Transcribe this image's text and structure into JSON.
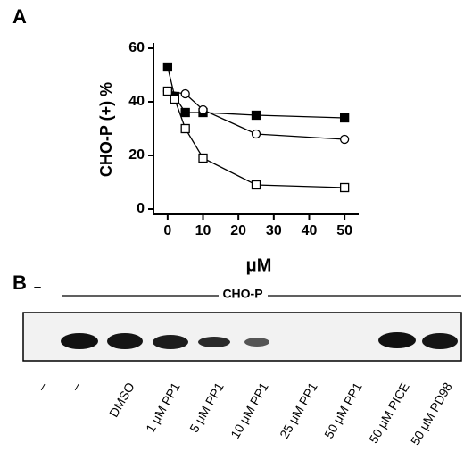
{
  "chart_data": {
    "type": "line",
    "panel_label": "A",
    "y_label": "CHO-P (+) %",
    "x_label": "μM",
    "xlim": [
      -4,
      54
    ],
    "xticks": [
      0,
      10,
      20,
      30,
      40,
      50
    ],
    "ylim": [
      -2,
      62
    ],
    "yticks": [
      0,
      20,
      40,
      60
    ],
    "series": [
      {
        "color": "#000000",
        "marker": "filled-square",
        "x": [
          0,
          2,
          5,
          10,
          25,
          50
        ],
        "values": [
          53,
          42,
          36,
          36,
          35,
          34
        ]
      },
      {
        "color": "#000000",
        "marker": "open-circle",
        "x": [
          0,
          5,
          10,
          25,
          50
        ],
        "values": [
          44,
          43,
          37,
          28,
          26
        ]
      },
      {
        "color": "#000000",
        "marker": "open-square",
        "x": [
          0,
          2,
          5,
          10,
          25,
          50
        ],
        "values": [
          44,
          41,
          30,
          19,
          9,
          8
        ]
      }
    ]
  },
  "gel": {
    "panel_label": "B",
    "control_label": "–",
    "group_label": "CHO-P",
    "lanes": [
      "–",
      "–",
      "DMSO",
      "1 μM PP1",
      "5 μM PP1",
      "10 μM PP1",
      "25 μM PP1",
      "50 μM PP1",
      "50 μM PICE",
      "50 μM PD98"
    ]
  }
}
